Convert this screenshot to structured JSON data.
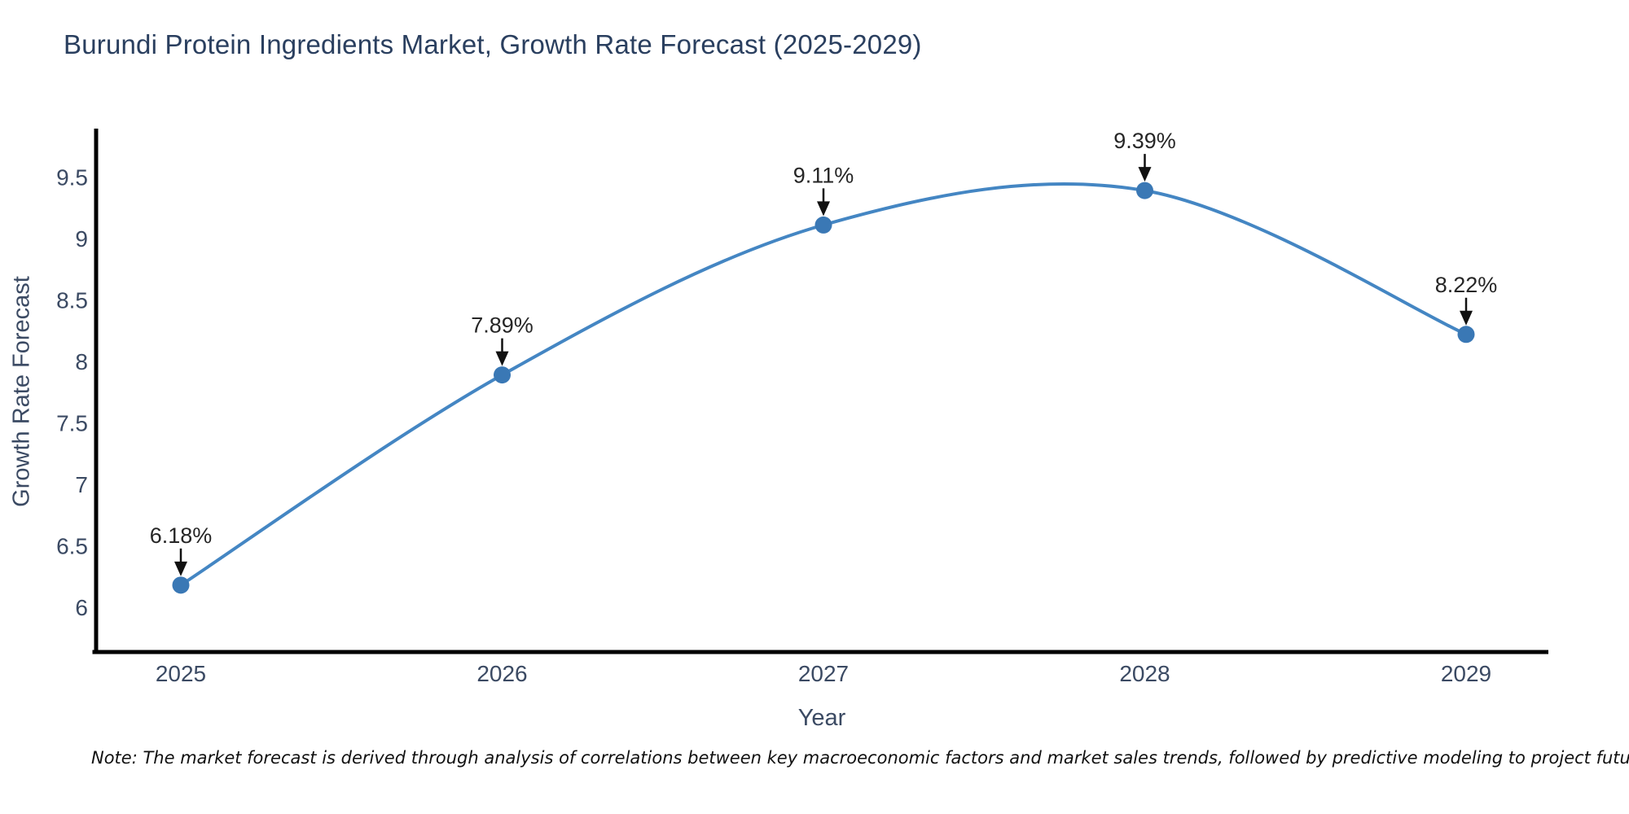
{
  "chart_data": {
    "type": "line",
    "title": "Burundi Protein Ingredients Market, Growth Rate Forecast (2025-2029)",
    "xlabel": "Year",
    "ylabel": "Growth Rate Forecast",
    "categories": [
      "2025",
      "2026",
      "2027",
      "2028",
      "2029"
    ],
    "values": [
      6.18,
      7.89,
      9.11,
      9.39,
      8.22
    ],
    "point_labels": [
      "6.18%",
      "7.89%",
      "9.11%",
      "9.39%",
      "8.22%"
    ],
    "yticks": [
      6,
      6.5,
      7,
      7.5,
      8,
      8.5,
      9,
      9.5
    ],
    "ylim": [
      5.7,
      9.75
    ],
    "line_shape": "spline",
    "grid": false,
    "legend_position": "none",
    "colors": {
      "line": "#4486c3",
      "marker": "#3a78b5",
      "axis": "#000000",
      "title_text": "#2a3f5f",
      "tick_text": "#3b4a63",
      "annotation_text": "#262626",
      "arrow": "#111111",
      "background": "#ffffff"
    }
  },
  "note": {
    "text": "Note: The market forecast is derived through analysis of correlations between key macroeconomic factors and market sales trends, followed by predictive modeling to project future sales"
  }
}
